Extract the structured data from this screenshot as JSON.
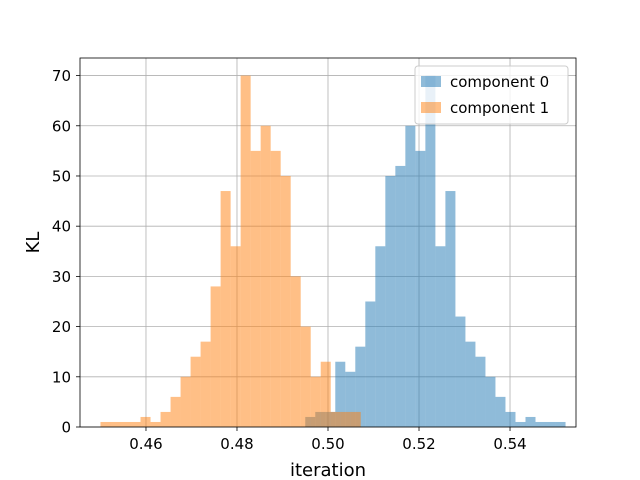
{
  "chart_data": {
    "type": "histogram",
    "title": "",
    "xlabel": "iteration",
    "ylabel": "KL",
    "xlim": [
      0.4455,
      0.5545
    ],
    "ylim": [
      0,
      73.5
    ],
    "x_ticks": [
      0.46,
      0.48,
      0.5,
      0.52,
      0.54
    ],
    "x_tick_labels": [
      "0.46",
      "0.48",
      "0.50",
      "0.52",
      "0.54"
    ],
    "y_ticks": [
      0,
      10,
      20,
      30,
      40,
      50,
      60,
      70
    ],
    "y_tick_labels": [
      "0",
      "10",
      "20",
      "30",
      "40",
      "50",
      "60",
      "70"
    ],
    "grid": true,
    "legend_position": "upper right",
    "series": [
      {
        "name": "component 0",
        "color": "#1f77b4",
        "alpha": 0.5,
        "bin_start": 0.495,
        "bin_width": 0.0022,
        "counts": [
          2,
          3,
          3,
          13,
          11,
          16,
          25,
          36,
          50,
          52,
          60,
          55,
          70,
          36,
          47,
          22,
          17,
          14,
          10,
          6,
          3,
          1,
          2,
          1,
          1,
          1
        ]
      },
      {
        "name": "component 1",
        "color": "#ff7f0e",
        "alpha": 0.5,
        "bin_start": 0.45,
        "bin_width": 0.0022,
        "counts": [
          1,
          1,
          1,
          1,
          2,
          1,
          3,
          6,
          10,
          14,
          17,
          28,
          47,
          36,
          70,
          55,
          60,
          55,
          50,
          30,
          20,
          10,
          13,
          3,
          3,
          3
        ]
      }
    ]
  }
}
